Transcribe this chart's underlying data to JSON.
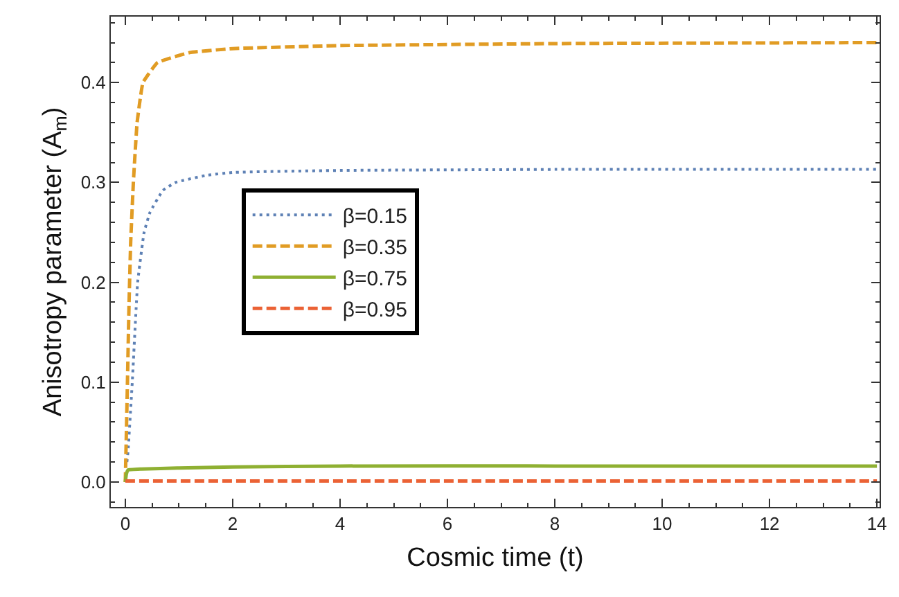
{
  "chart_data": {
    "type": "line",
    "xlabel": "Cosmic time (t)",
    "ylabel": "Anisotropy parameter (A$_{m}$)",
    "xlim": [
      -0.27,
      14.05
    ],
    "ylim": [
      -0.025,
      0.466
    ],
    "xticks": [
      0,
      2,
      4,
      6,
      8,
      10,
      12,
      14
    ],
    "yticks": [
      {
        "value": 0,
        "label": "0.0"
      },
      {
        "value": 0.1,
        "label": "0.1"
      },
      {
        "value": 0.2,
        "label": "0.2"
      },
      {
        "value": 0.3,
        "label": "0.3"
      },
      {
        "value": 0.4,
        "label": "0.4"
      }
    ],
    "grid": false,
    "legend": "center left",
    "series": [
      {
        "name": "β=0.15",
        "color": "#5e81b5",
        "line_style": "dotted",
        "x": [
          0.03,
          0.05,
          0.13,
          0.23,
          0.35,
          0.46,
          0.7,
          0.94,
          1.5,
          2,
          4,
          8,
          14
        ],
        "values": [
          0.02,
          0.03,
          0.1,
          0.2,
          0.25,
          0.27,
          0.292,
          0.3,
          0.307,
          0.31,
          0.312,
          0.313,
          0.313
        ]
      },
      {
        "name": "β=0.35",
        "color": "#e19c24",
        "line_style": "dashed",
        "x": [
          0,
          0.02,
          0.04,
          0.07,
          0.1,
          0.15,
          0.22,
          0.33,
          0.6,
          1.2,
          2,
          4,
          8,
          14
        ],
        "values": [
          0,
          0.05,
          0.1,
          0.18,
          0.24,
          0.3,
          0.36,
          0.4,
          0.42,
          0.43,
          0.434,
          0.437,
          0.439,
          0.44
        ]
      },
      {
        "name": "β=0.75",
        "color": "#8fb032",
        "line_style": "solid",
        "x": [
          0,
          0.02,
          0.05,
          0.3,
          1,
          2,
          4,
          8,
          14
        ],
        "values": [
          0,
          0.008,
          0.012,
          0.013,
          0.014,
          0.015,
          0.016,
          0.016,
          0.016
        ]
      },
      {
        "name": "β=0.95",
        "color": "#eb6235",
        "line_style": "dashed",
        "x": [
          0,
          14
        ],
        "values": [
          0.001,
          0.001
        ]
      }
    ]
  }
}
